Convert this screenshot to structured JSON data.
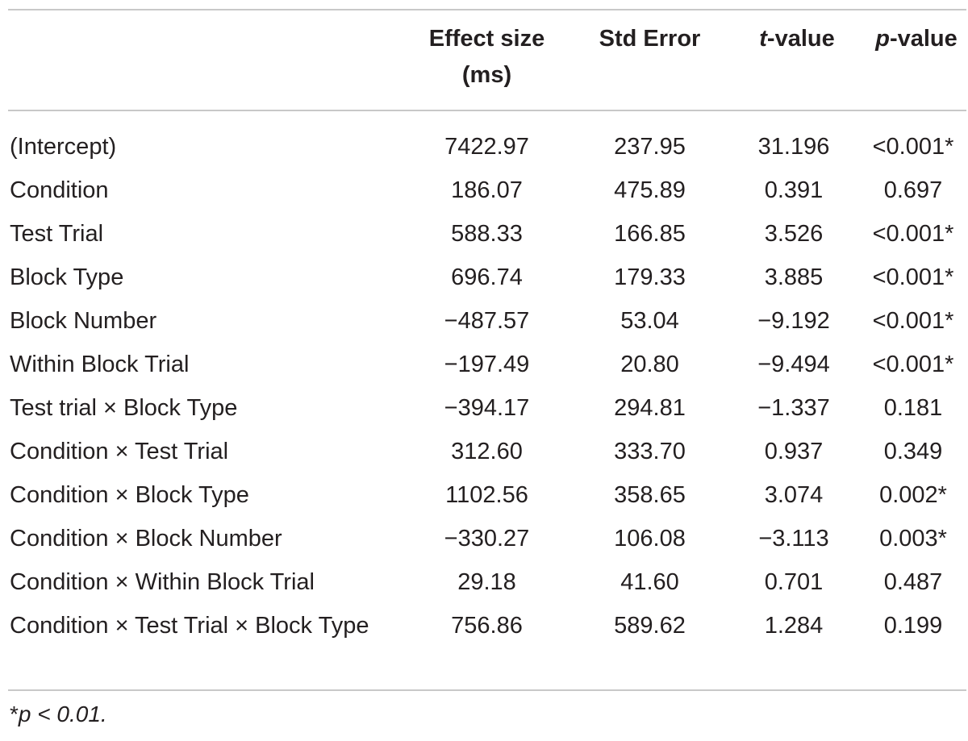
{
  "table": {
    "headers": {
      "label": "",
      "effect_size": "Effect size (ms)",
      "std_error": "Std Error",
      "t_value_italic": "t",
      "t_value_rest": "-value",
      "p_value_italic": "p",
      "p_value_rest": "-value"
    },
    "rows": [
      {
        "term": "(Intercept)",
        "effect": "7422.97",
        "se": "237.95",
        "t": "31.196",
        "p": "<0.001*"
      },
      {
        "term": "Condition",
        "effect": "186.07",
        "se": "475.89",
        "t": "0.391",
        "p": "0.697"
      },
      {
        "term": "Test Trial",
        "effect": "588.33",
        "se": "166.85",
        "t": "3.526",
        "p": "<0.001*"
      },
      {
        "term": "Block Type",
        "effect": "696.74",
        "se": "179.33",
        "t": "3.885",
        "p": "<0.001*"
      },
      {
        "term": "Block Number",
        "effect": "−487.57",
        "se": "53.04",
        "t": "−9.192",
        "p": "<0.001*"
      },
      {
        "term": "Within Block Trial",
        "effect": "−197.49",
        "se": "20.80",
        "t": "−9.494",
        "p": "<0.001*"
      },
      {
        "term": "Test trial × Block Type",
        "effect": "−394.17",
        "se": "294.81",
        "t": "−1.337",
        "p": "0.181"
      },
      {
        "term": "Condition × Test Trial",
        "effect": "312.60",
        "se": "333.70",
        "t": "0.937",
        "p": "0.349"
      },
      {
        "term": "Condition × Block Type",
        "effect": "1102.56",
        "se": "358.65",
        "t": "3.074",
        "p": "0.002*"
      },
      {
        "term": "Condition × Block Number",
        "effect": "−330.27",
        "se": "106.08",
        "t": "−3.113",
        "p": "0.003*"
      },
      {
        "term": "Condition × Within Block Trial",
        "effect": "29.18",
        "se": "41.60",
        "t": "0.701",
        "p": "0.487"
      },
      {
        "term": "Condition × Test Trial × Block Type",
        "effect": "756.86",
        "se": "589.62",
        "t": "1.284",
        "p": "0.199"
      }
    ]
  },
  "footnote": {
    "prefix": "*",
    "italic": "p < 0.01."
  }
}
